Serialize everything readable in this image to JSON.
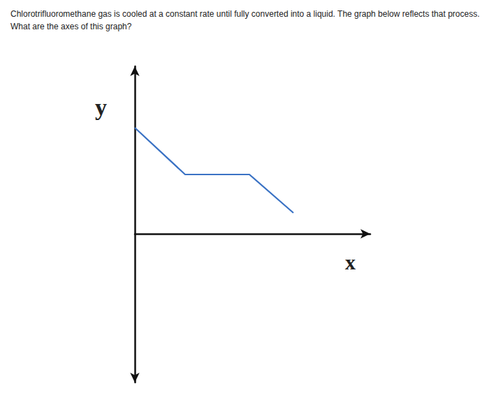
{
  "chart_data": {
    "type": "line",
    "title": "Chlorotrifluoromethane gas is cooled at a constant rate until fully converted into a liquid. The graph below reflects that process. What are the axes of this graph?",
    "xlabel": "x",
    "ylabel": "y",
    "x": [
      0,
      7.2,
      16.4,
      22.7
    ],
    "values": [
      15.2,
      8.5,
      8.5,
      3.0
    ],
    "color": "#3a72c4",
    "xlim": [
      0,
      33.7
    ],
    "ylim": [
      -21.3,
      24
    ],
    "tick_labels": false,
    "grid": false
  }
}
